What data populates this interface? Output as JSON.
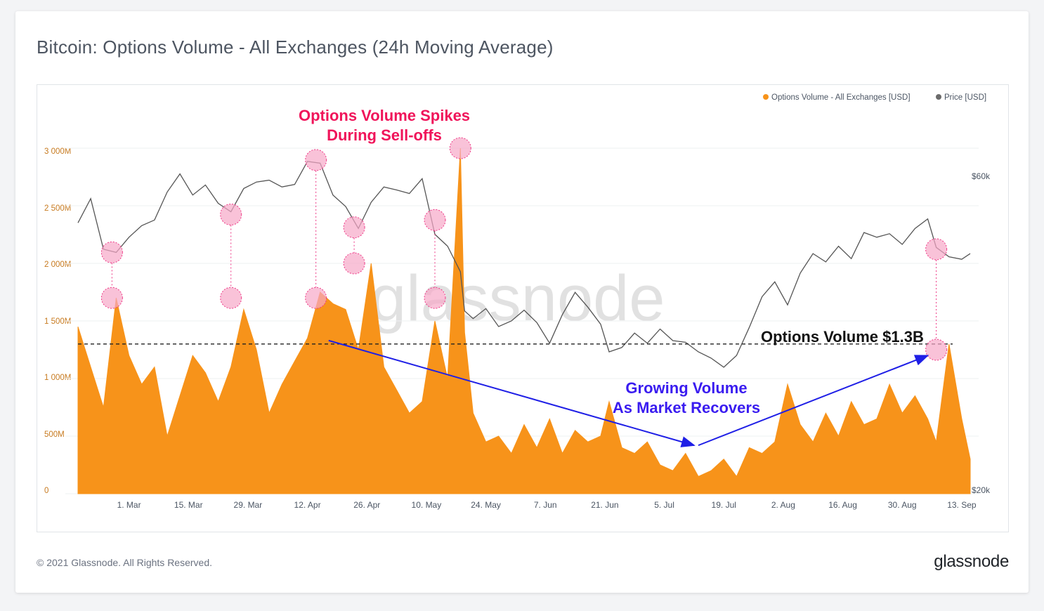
{
  "title": "Bitcoin: Options Volume - All Exchanges (24h Moving Average)",
  "footer": {
    "copyright": "© 2021 Glassnode. All Rights Reserved.",
    "brand": "glassnode"
  },
  "watermark": "glassnode",
  "legend": [
    {
      "label": "Options Volume - All Exchanges [USD]",
      "color": "#f7931a"
    },
    {
      "label": "Price [USD]",
      "color": "#6b6b6b"
    }
  ],
  "annotations": {
    "spikes_line1": "Options Volume Spikes",
    "spikes_line2": "During Sell-offs",
    "growing_line1": "Growing Volume",
    "growing_line2": "As Market Recovers",
    "level_label": "Options Volume  $1.3B"
  },
  "colors": {
    "volume": "#f7931a",
    "price": "#555555",
    "highlight": "#f7a8c8",
    "highlight_stroke": "#ee3a87",
    "arrow": "#1f1fe6"
  },
  "chart_data": {
    "type": "area",
    "x_range": [
      "2021-02-17",
      "2021-09-15"
    ],
    "x_ticks": [
      "1. Mar",
      "15. Mar",
      "29. Mar",
      "12. Apr",
      "26. Apr",
      "10. May",
      "24. May",
      "7. Jun",
      "21. Jun",
      "5. Jul",
      "19. Jul",
      "2. Aug",
      "16. Aug",
      "30. Aug",
      "13. Sep"
    ],
    "y_left": {
      "ticks": [
        "0",
        "500M",
        "1 000M",
        "1 500M",
        "2 000M",
        "2 500M",
        "3 000M"
      ],
      "range": [
        0,
        3000000000
      ]
    },
    "y_right": {
      "ticks": [
        "$20k",
        "$60k"
      ],
      "range": [
        20000,
        60000
      ],
      "scale": "log"
    },
    "reference_level": 1300000000,
    "series": [
      {
        "name": "Options Volume - All Exchanges [USD]",
        "axis": "left",
        "x": [
          "2021-02-17",
          "2021-02-20",
          "2021-02-23",
          "2021-02-26",
          "2021-03-01",
          "2021-03-04",
          "2021-03-07",
          "2021-03-10",
          "2021-03-13",
          "2021-03-16",
          "2021-03-19",
          "2021-03-22",
          "2021-03-25",
          "2021-03-28",
          "2021-03-31",
          "2021-04-03",
          "2021-04-06",
          "2021-04-09",
          "2021-04-12",
          "2021-04-15",
          "2021-04-18",
          "2021-04-21",
          "2021-04-24",
          "2021-04-27",
          "2021-04-30",
          "2021-05-03",
          "2021-05-06",
          "2021-05-09",
          "2021-05-12",
          "2021-05-15",
          "2021-05-18",
          "2021-05-19",
          "2021-05-21",
          "2021-05-24",
          "2021-05-27",
          "2021-05-30",
          "2021-06-02",
          "2021-06-05",
          "2021-06-08",
          "2021-06-11",
          "2021-06-14",
          "2021-06-17",
          "2021-06-20",
          "2021-06-22",
          "2021-06-25",
          "2021-06-28",
          "2021-07-01",
          "2021-07-04",
          "2021-07-07",
          "2021-07-10",
          "2021-07-13",
          "2021-07-16",
          "2021-07-19",
          "2021-07-22",
          "2021-07-25",
          "2021-07-28",
          "2021-07-31",
          "2021-08-03",
          "2021-08-06",
          "2021-08-09",
          "2021-08-12",
          "2021-08-15",
          "2021-08-18",
          "2021-08-21",
          "2021-08-24",
          "2021-08-27",
          "2021-08-30",
          "2021-09-02",
          "2021-09-05",
          "2021-09-07",
          "2021-09-10",
          "2021-09-13",
          "2021-09-15"
        ],
        "values": [
          1450000000,
          1100000000,
          750000000,
          1700000000,
          1200000000,
          950000000,
          1100000000,
          500000000,
          850000000,
          1200000000,
          1050000000,
          800000000,
          1100000000,
          1600000000,
          1250000000,
          700000000,
          950000000,
          1150000000,
          1350000000,
          1750000000,
          1650000000,
          1600000000,
          1250000000,
          2000000000,
          1100000000,
          900000000,
          700000000,
          800000000,
          1500000000,
          1000000000,
          3000000000,
          1400000000,
          700000000,
          450000000,
          500000000,
          350000000,
          600000000,
          400000000,
          650000000,
          350000000,
          550000000,
          450000000,
          500000000,
          800000000,
          400000000,
          350000000,
          450000000,
          250000000,
          200000000,
          350000000,
          150000000,
          200000000,
          300000000,
          150000000,
          400000000,
          350000000,
          450000000,
          950000000,
          600000000,
          450000000,
          700000000,
          500000000,
          800000000,
          600000000,
          650000000,
          950000000,
          700000000,
          850000000,
          650000000,
          450000000,
          1300000000,
          650000000,
          300000000
        ]
      },
      {
        "name": "Price [USD]",
        "axis": "right",
        "x": [
          "2021-02-17",
          "2021-02-20",
          "2021-02-23",
          "2021-02-26",
          "2021-03-01",
          "2021-03-04",
          "2021-03-07",
          "2021-03-10",
          "2021-03-13",
          "2021-03-16",
          "2021-03-19",
          "2021-03-22",
          "2021-03-25",
          "2021-03-28",
          "2021-03-31",
          "2021-04-03",
          "2021-04-06",
          "2021-04-09",
          "2021-04-12",
          "2021-04-15",
          "2021-04-18",
          "2021-04-21",
          "2021-04-24",
          "2021-04-27",
          "2021-04-30",
          "2021-05-03",
          "2021-05-06",
          "2021-05-09",
          "2021-05-12",
          "2021-05-15",
          "2021-05-18",
          "2021-05-19",
          "2021-05-21",
          "2021-05-24",
          "2021-05-27",
          "2021-05-30",
          "2021-06-02",
          "2021-06-05",
          "2021-06-08",
          "2021-06-11",
          "2021-06-14",
          "2021-06-17",
          "2021-06-20",
          "2021-06-22",
          "2021-06-25",
          "2021-06-28",
          "2021-07-01",
          "2021-07-04",
          "2021-07-07",
          "2021-07-10",
          "2021-07-13",
          "2021-07-16",
          "2021-07-19",
          "2021-07-22",
          "2021-07-25",
          "2021-07-28",
          "2021-07-31",
          "2021-08-03",
          "2021-08-06",
          "2021-08-09",
          "2021-08-12",
          "2021-08-15",
          "2021-08-18",
          "2021-08-21",
          "2021-08-24",
          "2021-08-27",
          "2021-08-30",
          "2021-09-02",
          "2021-09-05",
          "2021-09-07",
          "2021-09-10",
          "2021-09-13",
          "2021-09-15"
        ],
        "values": [
          51000,
          55500,
          46500,
          46000,
          48500,
          50500,
          51500,
          56800,
          60500,
          56200,
          58200,
          54600,
          53000,
          57500,
          58800,
          59200,
          57800,
          58300,
          63200,
          62800,
          56200,
          54000,
          50000,
          54800,
          57800,
          57200,
          56500,
          59500,
          49000,
          47000,
          43000,
          37500,
          36500,
          37800,
          35500,
          36200,
          37600,
          36000,
          33500,
          37000,
          40000,
          38000,
          35800,
          32500,
          33000,
          34700,
          33500,
          35200,
          33800,
          33600,
          32500,
          31800,
          30800,
          32100,
          35400,
          39400,
          41500,
          38300,
          42800,
          45800,
          44500,
          47000,
          45000,
          49300,
          48500,
          49100,
          47300,
          50000,
          51700,
          46800,
          45300,
          44900,
          45800
        ]
      }
    ]
  },
  "highlights": [
    {
      "date": "2021-02-25",
      "price": 46000,
      "volume": 1700000000
    },
    {
      "date": "2021-03-25",
      "price": 52500,
      "volume": 1700000000
    },
    {
      "date": "2021-04-14",
      "price": 63500,
      "volume": 1700000000
    },
    {
      "date": "2021-04-23",
      "price": 50200,
      "volume": 2000000000
    },
    {
      "date": "2021-05-12",
      "price": 51500,
      "volume": 1700000000
    },
    {
      "date": "2021-05-18",
      "volume": 3000000000
    },
    {
      "date": "2021-09-07",
      "price": 46500,
      "volume": 1250000000
    }
  ]
}
